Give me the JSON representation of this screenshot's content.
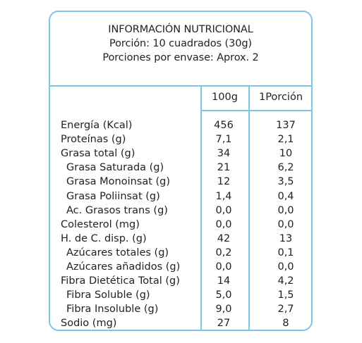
{
  "header": {
    "title": "INFORMACIÓN NUTRICIONAL",
    "portion": "Porción: 10 cuadrados (30g)",
    "servings": "Porciones por envase: Aprox. 2"
  },
  "columns": [
    "100g",
    "1Porción"
  ],
  "rows": [
    {
      "label": "Energía (Kcal)",
      "v100": "456",
      "vportion": "137",
      "sub": false
    },
    {
      "label": "Proteínas (g)",
      "v100": "7,1",
      "vportion": "2,1",
      "sub": false
    },
    {
      "label": "Grasa total (g)",
      "v100": "34",
      "vportion": "10",
      "sub": false
    },
    {
      "label": "Grasa Saturada (g)",
      "v100": "21",
      "vportion": "6,2",
      "sub": true
    },
    {
      "label": "Grasa Monoinsat (g)",
      "v100": "12",
      "vportion": "3,5",
      "sub": true
    },
    {
      "label": "Grasa Poliinsat (g)",
      "v100": "1,4",
      "vportion": "0,4",
      "sub": true
    },
    {
      "label": "Ac. Grasos trans (g)",
      "v100": "0,0",
      "vportion": "0,0",
      "sub": true
    },
    {
      "label": "Colesterol (mg)",
      "v100": "0,0",
      "vportion": "0,0",
      "sub": false
    },
    {
      "label": "H. de C. disp. (g)",
      "v100": "42",
      "vportion": "13",
      "sub": false
    },
    {
      "label": "Azúcares totales (g)",
      "v100": "0,2",
      "vportion": "0,1",
      "sub": true
    },
    {
      "label": "Azúcares añadidos (g)",
      "v100": "0,0",
      "vportion": "0,0",
      "sub": true
    },
    {
      "label": "Fibra Dietética Total (g)",
      "v100": "14",
      "vportion": "4,2",
      "sub": false
    },
    {
      "label": "Fibra Soluble (g)",
      "v100": "5,0",
      "vportion": "1,5",
      "sub": true
    },
    {
      "label": "Fibra Insoluble (g)",
      "v100": "9,0",
      "vportion": "2,7",
      "sub": true
    },
    {
      "label": "Sodio (mg)",
      "v100": "27",
      "vportion": "8",
      "sub": false
    }
  ],
  "colors": {
    "border": "#7cc7e6",
    "text": "#222222"
  }
}
